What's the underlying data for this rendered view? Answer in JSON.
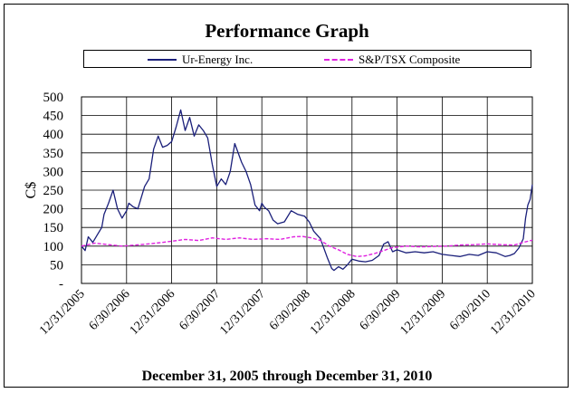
{
  "chart_data": {
    "type": "line",
    "title": "Performance Graph",
    "subtitle": "December 31, 2005 through December 31, 2010",
    "ylabel": "C$",
    "xlabel": "December 31, 2005 through December 31, 2010",
    "ylim": [
      0,
      500
    ],
    "yticks": [
      500,
      450,
      400,
      350,
      300,
      250,
      200,
      150,
      100,
      50
    ],
    "y_zero_label": "-",
    "grid": true,
    "legend_position": "top",
    "x_ticks": [
      "12/31/2005",
      "6/30/2006",
      "12/31/2006",
      "6/30/2007",
      "12/31/2007",
      "6/30/2008",
      "12/31/2008",
      "6/30/2009",
      "12/31/2009",
      "6/30/2010",
      "12/31/2010"
    ],
    "x_range": [
      0,
      10
    ],
    "series": [
      {
        "name": "Ur-Energy Inc.",
        "color": "#1a1f7a",
        "style": "solid",
        "x": [
          0,
          0.08,
          0.15,
          0.25,
          0.35,
          0.45,
          0.5,
          0.6,
          0.7,
          0.8,
          0.9,
          1.0,
          1.05,
          1.15,
          1.25,
          1.4,
          1.5,
          1.6,
          1.7,
          1.8,
          1.9,
          2.0,
          2.1,
          2.2,
          2.3,
          2.4,
          2.5,
          2.6,
          2.7,
          2.8,
          2.9,
          3.0,
          3.1,
          3.2,
          3.3,
          3.4,
          3.55,
          3.65,
          3.75,
          3.85,
          3.95,
          4.0,
          4.05,
          4.15,
          4.25,
          4.35,
          4.5,
          4.65,
          4.8,
          4.95,
          5.05,
          5.15,
          5.3,
          5.45,
          5.55,
          5.6,
          5.7,
          5.8,
          5.9,
          6.0,
          6.15,
          6.3,
          6.45,
          6.6,
          6.7,
          6.8,
          6.9,
          7.0,
          7.2,
          7.4,
          7.6,
          7.8,
          8.0,
          8.2,
          8.4,
          8.6,
          8.8,
          9.0,
          9.2,
          9.4,
          9.5,
          9.6,
          9.7,
          9.8,
          9.85,
          9.9,
          9.95,
          10.0
        ],
        "values": [
          100,
          88,
          125,
          110,
          130,
          150,
          185,
          215,
          250,
          200,
          175,
          195,
          215,
          205,
          200,
          260,
          280,
          360,
          395,
          365,
          370,
          380,
          420,
          465,
          410,
          445,
          395,
          425,
          410,
          390,
          320,
          260,
          280,
          265,
          300,
          375,
          325,
          300,
          265,
          210,
          195,
          215,
          205,
          195,
          170,
          160,
          165,
          195,
          185,
          180,
          165,
          140,
          120,
          70,
          40,
          35,
          45,
          38,
          50,
          65,
          60,
          58,
          62,
          75,
          105,
          112,
          85,
          90,
          82,
          85,
          82,
          85,
          78,
          75,
          72,
          78,
          75,
          85,
          82,
          72,
          75,
          80,
          95,
          120,
          175,
          210,
          225,
          265
        ]
      },
      {
        "name": "S&P/TSX Composite",
        "color": "#e020e0",
        "style": "dashed",
        "x": [
          0,
          0.3,
          0.6,
          0.9,
          1.2,
          1.5,
          1.8,
          2.0,
          2.3,
          2.6,
          2.9,
          3.2,
          3.5,
          3.8,
          4.1,
          4.4,
          4.7,
          4.9,
          5.1,
          5.3,
          5.5,
          5.7,
          5.9,
          6.1,
          6.3,
          6.5,
          6.7,
          6.9,
          7.2,
          7.5,
          7.8,
          8.1,
          8.4,
          8.7,
          9.0,
          9.3,
          9.6,
          9.8,
          10.0
        ],
        "values": [
          100,
          108,
          104,
          100,
          103,
          106,
          110,
          113,
          118,
          115,
          122,
          118,
          122,
          118,
          120,
          118,
          125,
          126,
          122,
          115,
          100,
          90,
          78,
          72,
          74,
          80,
          88,
          96,
          100,
          98,
          99,
          100,
          103,
          104,
          106,
          104,
          103,
          110,
          116
        ]
      }
    ]
  }
}
